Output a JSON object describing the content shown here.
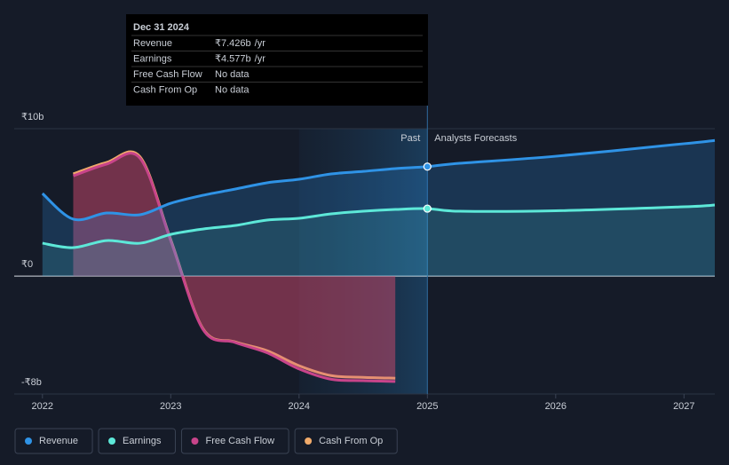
{
  "chart_data": {
    "type": "line",
    "x": [
      2022,
      2022.24,
      2022.5,
      2022.76,
      2023,
      2023.25,
      2023.5,
      2023.75,
      2024,
      2024.25,
      2024.5,
      2024.75,
      2025,
      2025.25,
      2026,
      2027,
      2027.24
    ],
    "xlim": [
      2021.78,
      2027.24
    ],
    "xticks": [
      2022,
      2023,
      2024,
      2025,
      2026,
      2027
    ],
    "ylim": [
      -8,
      10
    ],
    "yticks": [
      {
        "value": 10,
        "label": "₹10b"
      },
      {
        "value": 0,
        "label": "₹0"
      },
      {
        "value": -8,
        "label": "-₹8b"
      }
    ],
    "series": [
      {
        "name": "Revenue",
        "color": "#2f93e6",
        "values": [
          5.6,
          3.86,
          4.28,
          4.16,
          4.94,
          5.48,
          5.9,
          6.33,
          6.57,
          6.93,
          7.1,
          7.29,
          7.426,
          7.65,
          8.13,
          8.98,
          9.2
        ]
      },
      {
        "name": "Earnings",
        "color": "#5de8d8",
        "values": [
          2.23,
          1.93,
          2.41,
          2.23,
          2.83,
          3.19,
          3.43,
          3.8,
          3.92,
          4.22,
          4.4,
          4.52,
          4.577,
          4.4,
          4.43,
          4.7,
          4.82
        ]
      },
      {
        "name": "Free Cash Flow",
        "color": "#c8448a",
        "values": [
          null,
          6.8,
          7.6,
          8.0,
          2.4,
          -3.6,
          -4.5,
          -5.2,
          -6.3,
          -7.0,
          -7.1,
          -7.15,
          null,
          null,
          null,
          null,
          null
        ]
      },
      {
        "name": "Cash From Op",
        "color": "#f0aa6a",
        "values": [
          null,
          6.93,
          7.71,
          8.1,
          2.47,
          -3.55,
          -4.46,
          -5.06,
          -6.08,
          -6.75,
          -6.87,
          -6.93,
          null,
          null,
          null,
          null,
          null
        ]
      }
    ],
    "past_label": "Past",
    "forecast_label": "Analysts Forecasts",
    "divider_x": 2025,
    "tooltip": {
      "date": "Dec 31 2024",
      "unit": "/yr",
      "rows": [
        {
          "label": "Revenue",
          "value": "₹7.426b"
        },
        {
          "label": "Earnings",
          "value": "₹4.577b"
        },
        {
          "label": "Free Cash Flow",
          "value": "No data"
        },
        {
          "label": "Cash From Op",
          "value": "No data"
        }
      ]
    }
  }
}
